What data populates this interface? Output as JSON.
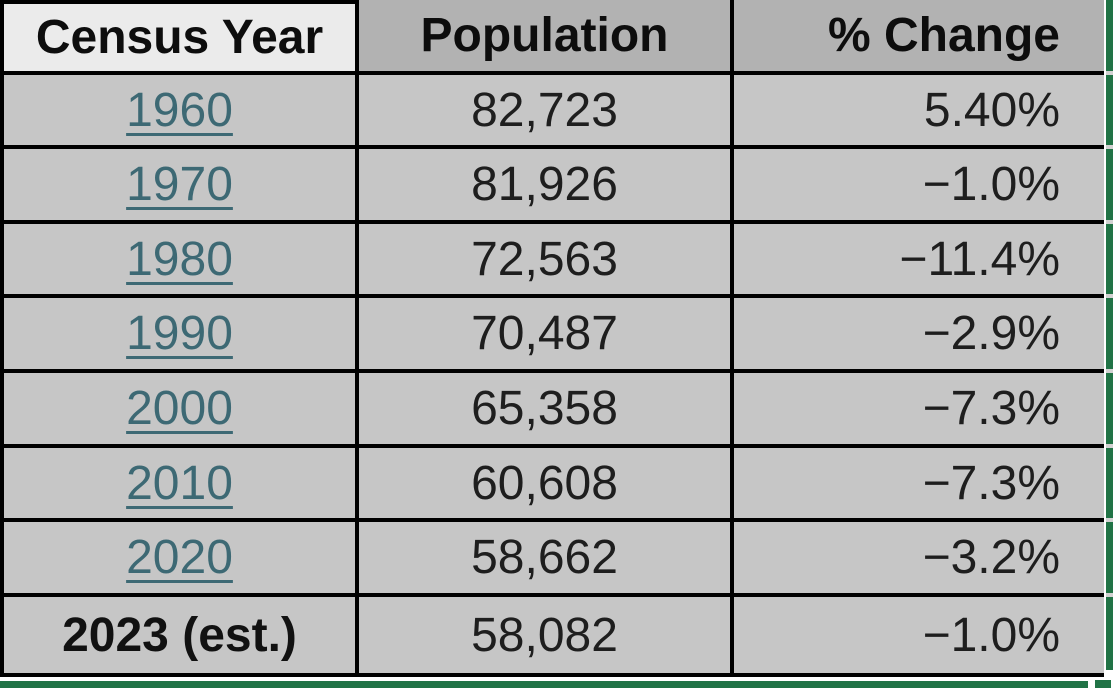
{
  "table": {
    "headers": [
      "Census Year",
      "Population",
      "% Change"
    ],
    "rows": [
      {
        "year": "1960",
        "population": "82,723",
        "change": "5.40%",
        "link": true
      },
      {
        "year": "1970",
        "population": "81,926",
        "change": "−1.0%",
        "link": true
      },
      {
        "year": "1980",
        "population": "72,563",
        "change": "−11.4%",
        "link": true
      },
      {
        "year": "1990",
        "population": "70,487",
        "change": "−2.9%",
        "link": true
      },
      {
        "year": "2000",
        "population": "65,358",
        "change": "−7.3%",
        "link": true
      },
      {
        "year": "2010",
        "population": "60,608",
        "change": "−7.3%",
        "link": true
      },
      {
        "year": "2020",
        "population": "58,662",
        "change": "−3.2%",
        "link": true
      },
      {
        "year": "2023 (est.)",
        "population": "58,082",
        "change": "−1.0%",
        "link": false
      }
    ]
  },
  "colors": {
    "selection_green": "#217346",
    "link_teal": "#3d6974",
    "cell_bg": "#c6c6c6",
    "header_bg": "#b2b2b2",
    "active_cell_bg": "#ebebeb",
    "grid_black": "#000000",
    "notch_gray": "#d2d2d2",
    "text": "#1e1e1e"
  }
}
